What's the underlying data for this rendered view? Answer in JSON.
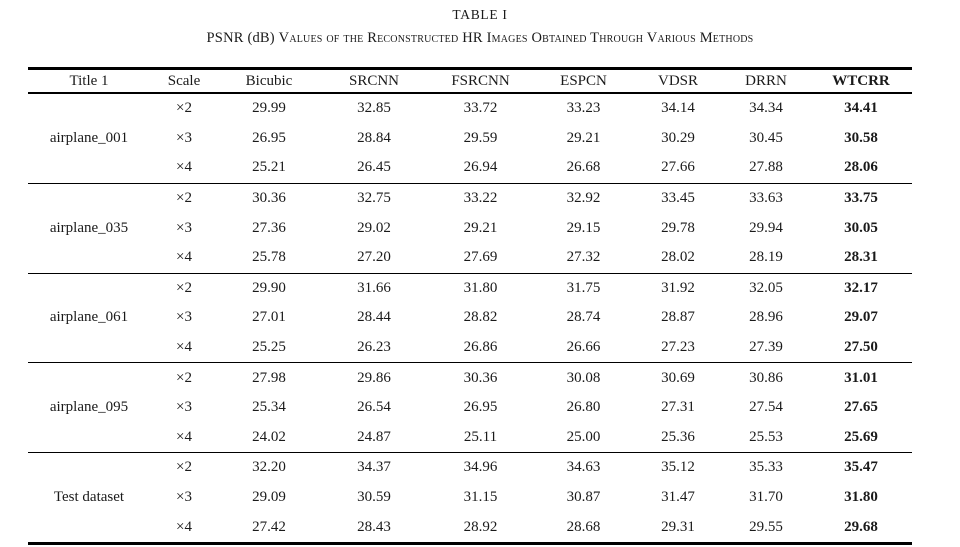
{
  "caption": {
    "title": "TABLE I",
    "subtitle_prefix": "PSNR (dB)",
    "subtitle_rest": "Values of the Reconstructed HR Images Obtained Through Various Methods"
  },
  "table": {
    "columns": [
      "Title 1",
      "Scale",
      "Bicubic",
      "SRCNN",
      "FSRCNN",
      "ESPCN",
      "VDSR",
      "DRRN",
      "WTCRR"
    ],
    "bold_column": "WTCRR",
    "groups": [
      {
        "label": "airplane_001",
        "rows": [
          {
            "scale": "×2",
            "values": [
              "29.99",
              "32.85",
              "33.72",
              "33.23",
              "34.14",
              "34.34",
              "34.41"
            ]
          },
          {
            "scale": "×3",
            "values": [
              "26.95",
              "28.84",
              "29.59",
              "29.21",
              "30.29",
              "30.45",
              "30.58"
            ]
          },
          {
            "scale": "×4",
            "values": [
              "25.21",
              "26.45",
              "26.94",
              "26.68",
              "27.66",
              "27.88",
              "28.06"
            ]
          }
        ]
      },
      {
        "label": "airplane_035",
        "rows": [
          {
            "scale": "×2",
            "values": [
              "30.36",
              "32.75",
              "33.22",
              "32.92",
              "33.45",
              "33.63",
              "33.75"
            ]
          },
          {
            "scale": "×3",
            "values": [
              "27.36",
              "29.02",
              "29.21",
              "29.15",
              "29.78",
              "29.94",
              "30.05"
            ]
          },
          {
            "scale": "×4",
            "values": [
              "25.78",
              "27.20",
              "27.69",
              "27.32",
              "28.02",
              "28.19",
              "28.31"
            ]
          }
        ]
      },
      {
        "label": "airplane_061",
        "rows": [
          {
            "scale": "×2",
            "values": [
              "29.90",
              "31.66",
              "31.80",
              "31.75",
              "31.92",
              "32.05",
              "32.17"
            ]
          },
          {
            "scale": "×3",
            "values": [
              "27.01",
              "28.44",
              "28.82",
              "28.74",
              "28.87",
              "28.96",
              "29.07"
            ]
          },
          {
            "scale": "×4",
            "values": [
              "25.25",
              "26.23",
              "26.86",
              "26.66",
              "27.23",
              "27.39",
              "27.50"
            ]
          }
        ]
      },
      {
        "label": "airplane_095",
        "rows": [
          {
            "scale": "×2",
            "values": [
              "27.98",
              "29.86",
              "30.36",
              "30.08",
              "30.69",
              "30.86",
              "31.01"
            ]
          },
          {
            "scale": "×3",
            "values": [
              "25.34",
              "26.54",
              "26.95",
              "26.80",
              "27.31",
              "27.54",
              "27.65"
            ]
          },
          {
            "scale": "×4",
            "values": [
              "24.02",
              "24.87",
              "25.11",
              "25.00",
              "25.36",
              "25.53",
              "25.69"
            ]
          }
        ]
      },
      {
        "label": "Test dataset",
        "rows": [
          {
            "scale": "×2",
            "values": [
              "32.20",
              "34.37",
              "34.96",
              "34.63",
              "35.12",
              "35.33",
              "35.47"
            ]
          },
          {
            "scale": "×3",
            "values": [
              "29.09",
              "30.59",
              "31.15",
              "30.87",
              "31.47",
              "31.70",
              "31.80"
            ]
          },
          {
            "scale": "×4",
            "values": [
              "27.42",
              "28.43",
              "28.92",
              "28.68",
              "29.31",
              "29.55",
              "29.68"
            ]
          }
        ]
      }
    ]
  },
  "colors": {
    "text": "#1a1a1a",
    "rule": "#000000",
    "background": "#ffffff"
  }
}
